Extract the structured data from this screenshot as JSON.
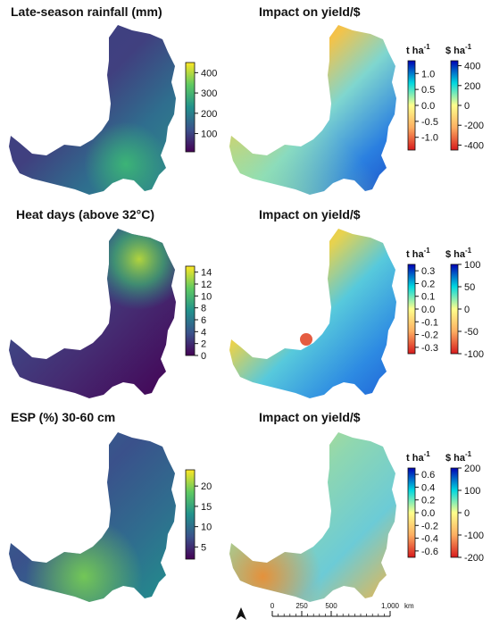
{
  "panels": [
    {
      "title": "Late-season rainfall (mm)",
      "kind": "climate",
      "ramp": [
        "#440154",
        "#3b528b",
        "#21918c",
        "#5ec962",
        "#fde725"
      ],
      "ticks": [
        {
          "label": "400",
          "value": 400
        },
        {
          "label": "300",
          "value": 300
        },
        {
          "label": "200",
          "value": 200
        },
        {
          "label": "100",
          "value": 100
        }
      ],
      "range": [
        10,
        450
      ]
    },
    {
      "title": "Impact on yield/$",
      "kind": "impact",
      "unit_left": "t ha",
      "unit_right": "$ ha",
      "unit_sup": "-1",
      "ramp": [
        "#d7191c",
        "#fdae61",
        "#ffff8c",
        "#00d8e0",
        "#0000b4"
      ],
      "ticks_left": [
        {
          "label": "1.0",
          "value": 1.0
        },
        {
          "label": "0.5",
          "value": 0.5
        },
        {
          "label": "0.0",
          "value": 0.0
        },
        {
          "label": "-0.5",
          "value": -0.5
        },
        {
          "label": "-1.0",
          "value": -1.0
        }
      ],
      "range_left": [
        -1.4,
        1.4
      ],
      "ticks_right": [
        {
          "label": "400",
          "value": 400
        },
        {
          "label": "200",
          "value": 200
        },
        {
          "label": "0",
          "value": 0
        },
        {
          "label": "-200",
          "value": -200
        },
        {
          "label": "-400",
          "value": -400
        }
      ],
      "range_right": [
        -450,
        450
      ]
    },
    {
      "title": "Heat days (above 32°C)",
      "kind": "climate",
      "ramp": [
        "#440154",
        "#3b528b",
        "#21918c",
        "#5ec962",
        "#fde725"
      ],
      "ticks": [
        {
          "label": "14",
          "value": 14
        },
        {
          "label": "12",
          "value": 12
        },
        {
          "label": "10",
          "value": 10
        },
        {
          "label": "8",
          "value": 8
        },
        {
          "label": "6",
          "value": 6
        },
        {
          "label": "4",
          "value": 4
        },
        {
          "label": "2",
          "value": 2
        },
        {
          "label": "0",
          "value": 0
        }
      ],
      "range": [
        0,
        15
      ]
    },
    {
      "title": "Impact on yield/$",
      "kind": "impact",
      "unit_left": "t ha",
      "unit_right": "$ ha",
      "unit_sup": "-1",
      "ramp": [
        "#d7191c",
        "#fdae61",
        "#ffff8c",
        "#00d8e0",
        "#0000b4"
      ],
      "ticks_left": [
        {
          "label": "0.3",
          "value": 0.3
        },
        {
          "label": "0.2",
          "value": 0.2
        },
        {
          "label": "0.1",
          "value": 0.1
        },
        {
          "label": "0.0",
          "value": 0.0
        },
        {
          "label": "-0.1",
          "value": -0.1
        },
        {
          "label": "-0.2",
          "value": -0.2
        },
        {
          "label": "-0.3",
          "value": -0.3
        }
      ],
      "range_left": [
        -0.35,
        0.35
      ],
      "ticks_right": [
        {
          "label": "100",
          "value": 100
        },
        {
          "label": "50",
          "value": 50
        },
        {
          "label": "0",
          "value": 0
        },
        {
          "label": "-50",
          "value": -50
        },
        {
          "label": "-100",
          "value": -100
        }
      ],
      "range_right": [
        -100,
        100
      ]
    },
    {
      "title": "ESP (%) 30-60 cm",
      "kind": "climate",
      "ramp": [
        "#440154",
        "#3b528b",
        "#21918c",
        "#5ec962",
        "#fde725"
      ],
      "ticks": [
        {
          "label": "20",
          "value": 20
        },
        {
          "label": "15",
          "value": 15
        },
        {
          "label": "10",
          "value": 10
        },
        {
          "label": "5",
          "value": 5
        }
      ],
      "range": [
        2,
        24
      ]
    },
    {
      "title": "Impact on yield/$",
      "kind": "impact",
      "unit_left": "t ha",
      "unit_right": "$ ha",
      "unit_sup": "-1",
      "ramp": [
        "#d7191c",
        "#fdae61",
        "#ffff8c",
        "#00d8e0",
        "#0000b4"
      ],
      "ticks_left": [
        {
          "label": "0.6",
          "value": 0.6
        },
        {
          "label": "0.4",
          "value": 0.4
        },
        {
          "label": "0.2",
          "value": 0.2
        },
        {
          "label": "0.0",
          "value": 0.0
        },
        {
          "label": "-0.2",
          "value": -0.2
        },
        {
          "label": "-0.4",
          "value": -0.4
        },
        {
          "label": "-0.6",
          "value": -0.6
        }
      ],
      "range_left": [
        -0.7,
        0.7
      ],
      "ticks_right": [
        {
          "label": "200",
          "value": 200
        },
        {
          "label": "100",
          "value": 100
        },
        {
          "label": "0",
          "value": 0
        },
        {
          "label": "-100",
          "value": -100
        },
        {
          "label": "-200",
          "value": -200
        }
      ],
      "range_right": [
        -200,
        200
      ]
    }
  ],
  "scale_bar": {
    "ticks": [
      {
        "label": "0",
        "value": 0
      },
      {
        "label": "250",
        "value": 250
      },
      {
        "label": "500",
        "value": 500
      },
      {
        "label": "1,000",
        "value": 1000
      }
    ],
    "unit": "km",
    "max": 1000
  },
  "north_arrow": {
    "icon": "north-arrow-icon"
  }
}
